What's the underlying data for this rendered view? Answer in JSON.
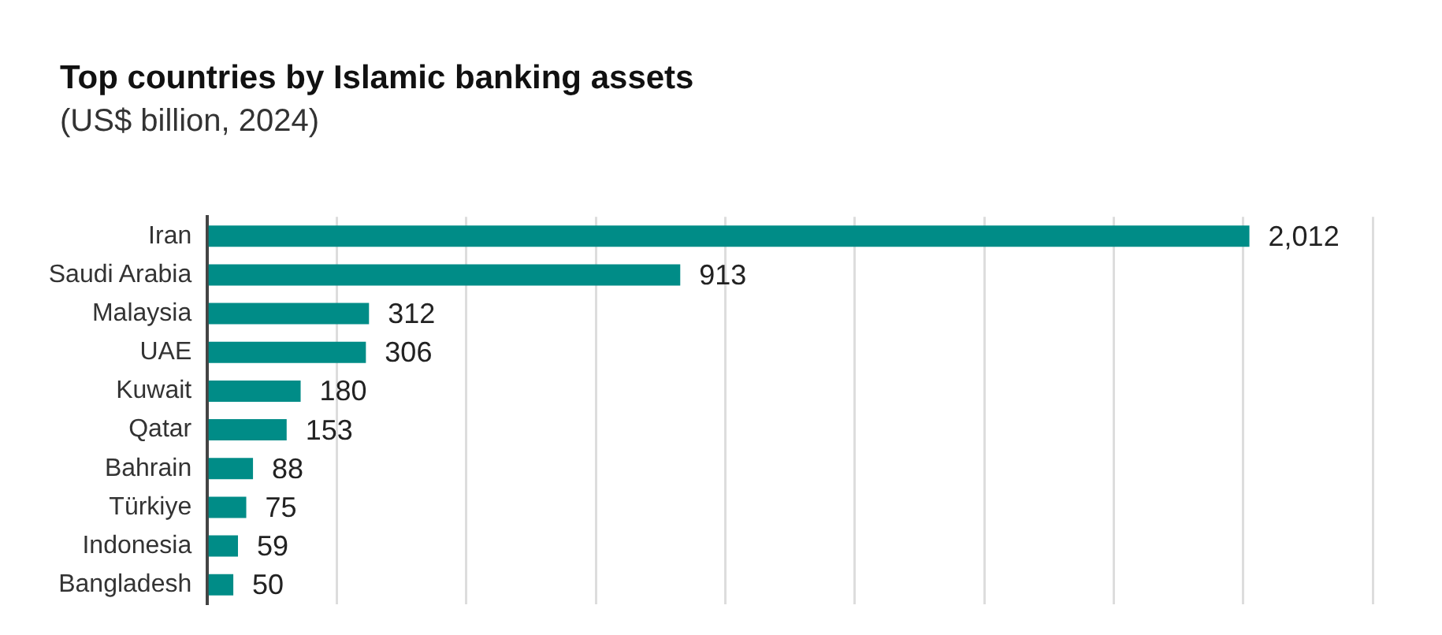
{
  "chart_data": {
    "type": "bar",
    "orientation": "horizontal",
    "title": "Top countries by Islamic banking assets",
    "subtitle": "(US$ billion, 2024)",
    "categories": [
      "Iran",
      "Saudi Arabia",
      "Malaysia",
      "UAE",
      "Kuwait",
      "Qatar",
      "Bahrain",
      "Türkiye",
      "Indonesia",
      "Bangladesh"
    ],
    "values": [
      2012,
      913,
      312,
      306,
      180,
      153,
      88,
      75,
      59,
      50
    ],
    "value_labels": [
      "2,012",
      "913",
      "312",
      "306",
      "180",
      "153",
      "88",
      "75",
      "59",
      "50"
    ],
    "color": "#008c87",
    "xlim": [
      0,
      2250
    ],
    "xticks": [
      {
        "value": 0,
        "label": null
      },
      {
        "value": 250,
        "label": null
      },
      {
        "value": 500,
        "label": null
      },
      {
        "value": 750,
        "label": null
      },
      {
        "value": 1000,
        "label": null
      },
      {
        "value": 1250,
        "label": null
      },
      {
        "value": 1500,
        "label": null
      },
      {
        "value": 1750,
        "label": null
      },
      {
        "value": 2000,
        "label": null
      },
      {
        "value": 2250,
        "label": null
      }
    ],
    "tick_labels": "y",
    "grid": "x",
    "legend": false
  }
}
